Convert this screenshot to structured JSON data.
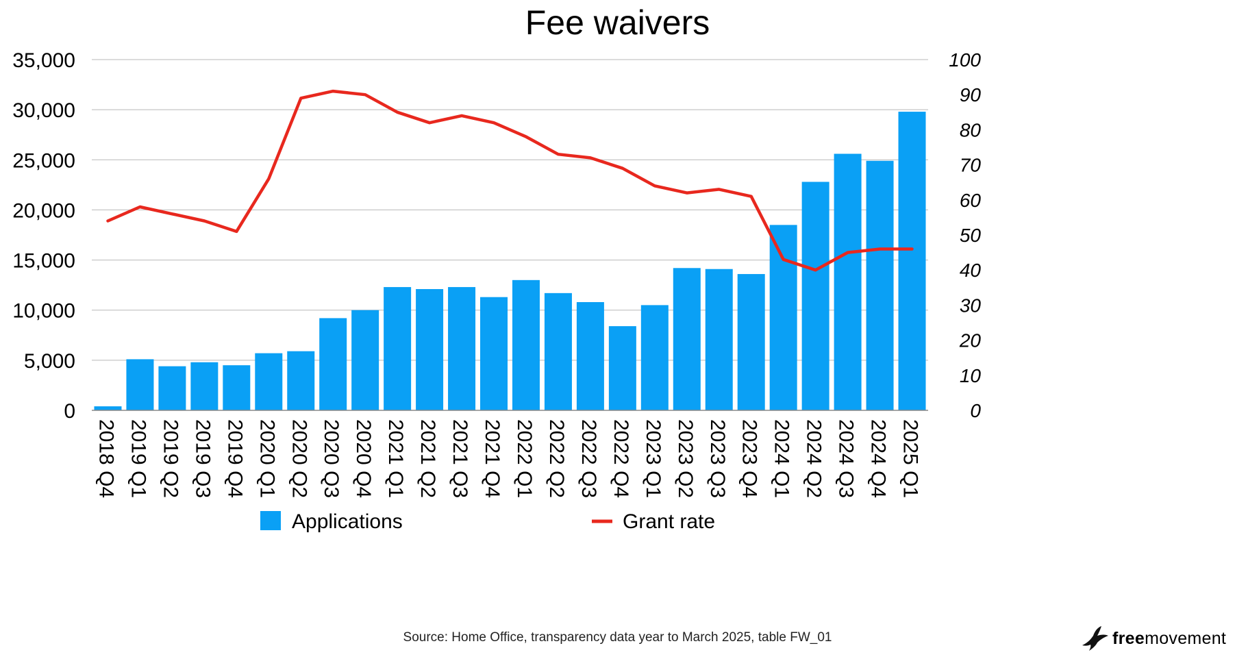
{
  "chart_data": {
    "type": "bar",
    "title": "Fee waivers",
    "categories": [
      "2018 Q4",
      "2019 Q1",
      "2019 Q2",
      "2019 Q3",
      "2019 Q4",
      "2020 Q1",
      "2020 Q2",
      "2020 Q3",
      "2020 Q4",
      "2021 Q1",
      "2021 Q2",
      "2021 Q3",
      "2021 Q4",
      "2022 Q1",
      "2022 Q2",
      "2022 Q3",
      "2022 Q4",
      "2023 Q1",
      "2023 Q2",
      "2023 Q3",
      "2023 Q4",
      "2024 Q1",
      "2024 Q2",
      "2024 Q3",
      "2024 Q4",
      "2025 Q1"
    ],
    "series": [
      {
        "name": "Applications",
        "type": "bar",
        "axis": "left",
        "color": "#0aa0f5",
        "values": [
          400,
          5100,
          4400,
          4800,
          4500,
          5700,
          5900,
          9200,
          10000,
          12300,
          12100,
          12300,
          11300,
          13000,
          11700,
          10800,
          8400,
          10500,
          14200,
          14100,
          13600,
          18500,
          22800,
          25600,
          24900,
          29800
        ]
      },
      {
        "name": "Grant rate",
        "type": "line",
        "axis": "right",
        "color": "#e8281e",
        "values": [
          54,
          58,
          56,
          54,
          51,
          66,
          89,
          91,
          90,
          85,
          82,
          84,
          82,
          78,
          73,
          72,
          69,
          64,
          62,
          63,
          61,
          43,
          40,
          45,
          46,
          46
        ]
      }
    ],
    "y_left": {
      "min": 0,
      "max": 35000,
      "ticks": [
        "0",
        "5,000",
        "10,000",
        "15,000",
        "20,000",
        "25,000",
        "30,000",
        "35,000"
      ]
    },
    "y_right": {
      "min": 0,
      "max": 100,
      "ticks": [
        "0",
        "10",
        "20",
        "30",
        "40",
        "50",
        "60",
        "70",
        "80",
        "90",
        "100"
      ]
    },
    "grid": true,
    "legend": "bottom"
  },
  "source": "Source: Home Office, transparency data year to March 2025, table FW_01",
  "logo": {
    "bold": "free",
    "regular": "movement"
  }
}
